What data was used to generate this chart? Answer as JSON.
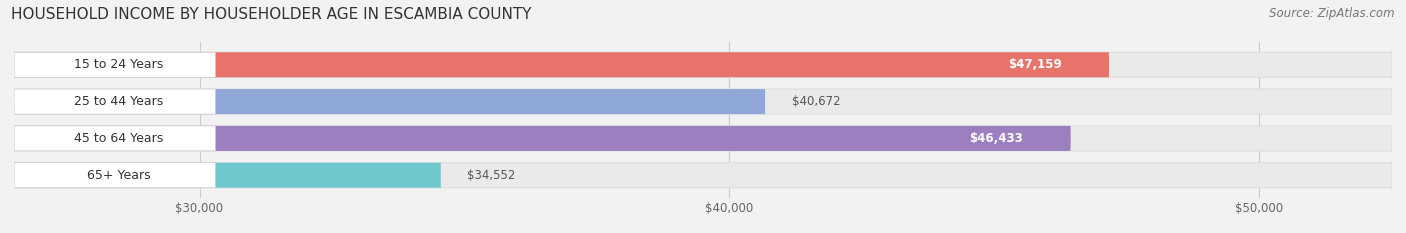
{
  "title": "HOUSEHOLD INCOME BY HOUSEHOLDER AGE IN ESCAMBIA COUNTY",
  "source": "Source: ZipAtlas.com",
  "categories": [
    "15 to 24 Years",
    "25 to 44 Years",
    "45 to 64 Years",
    "65+ Years"
  ],
  "values": [
    47159,
    40672,
    46433,
    34552
  ],
  "bar_colors": [
    "#E8736A",
    "#8FA8D8",
    "#9B7FBF",
    "#6EC8CE"
  ],
  "value_labels": [
    "$47,159",
    "$40,672",
    "$46,433",
    "$34,552"
  ],
  "xmin": 26500,
  "xmax": 52500,
  "xticks": [
    30000,
    40000,
    50000
  ],
  "xtick_labels": [
    "$30,000",
    "$40,000",
    "$50,000"
  ],
  "background_color": "#F2F2F2",
  "bar_bg_color": "#EAEAEA",
  "bar_bg_border": "#DDDDDD",
  "title_fontsize": 11,
  "source_fontsize": 8.5,
  "label_fontsize": 9,
  "value_fontsize": 8.5,
  "tick_fontsize": 8.5
}
